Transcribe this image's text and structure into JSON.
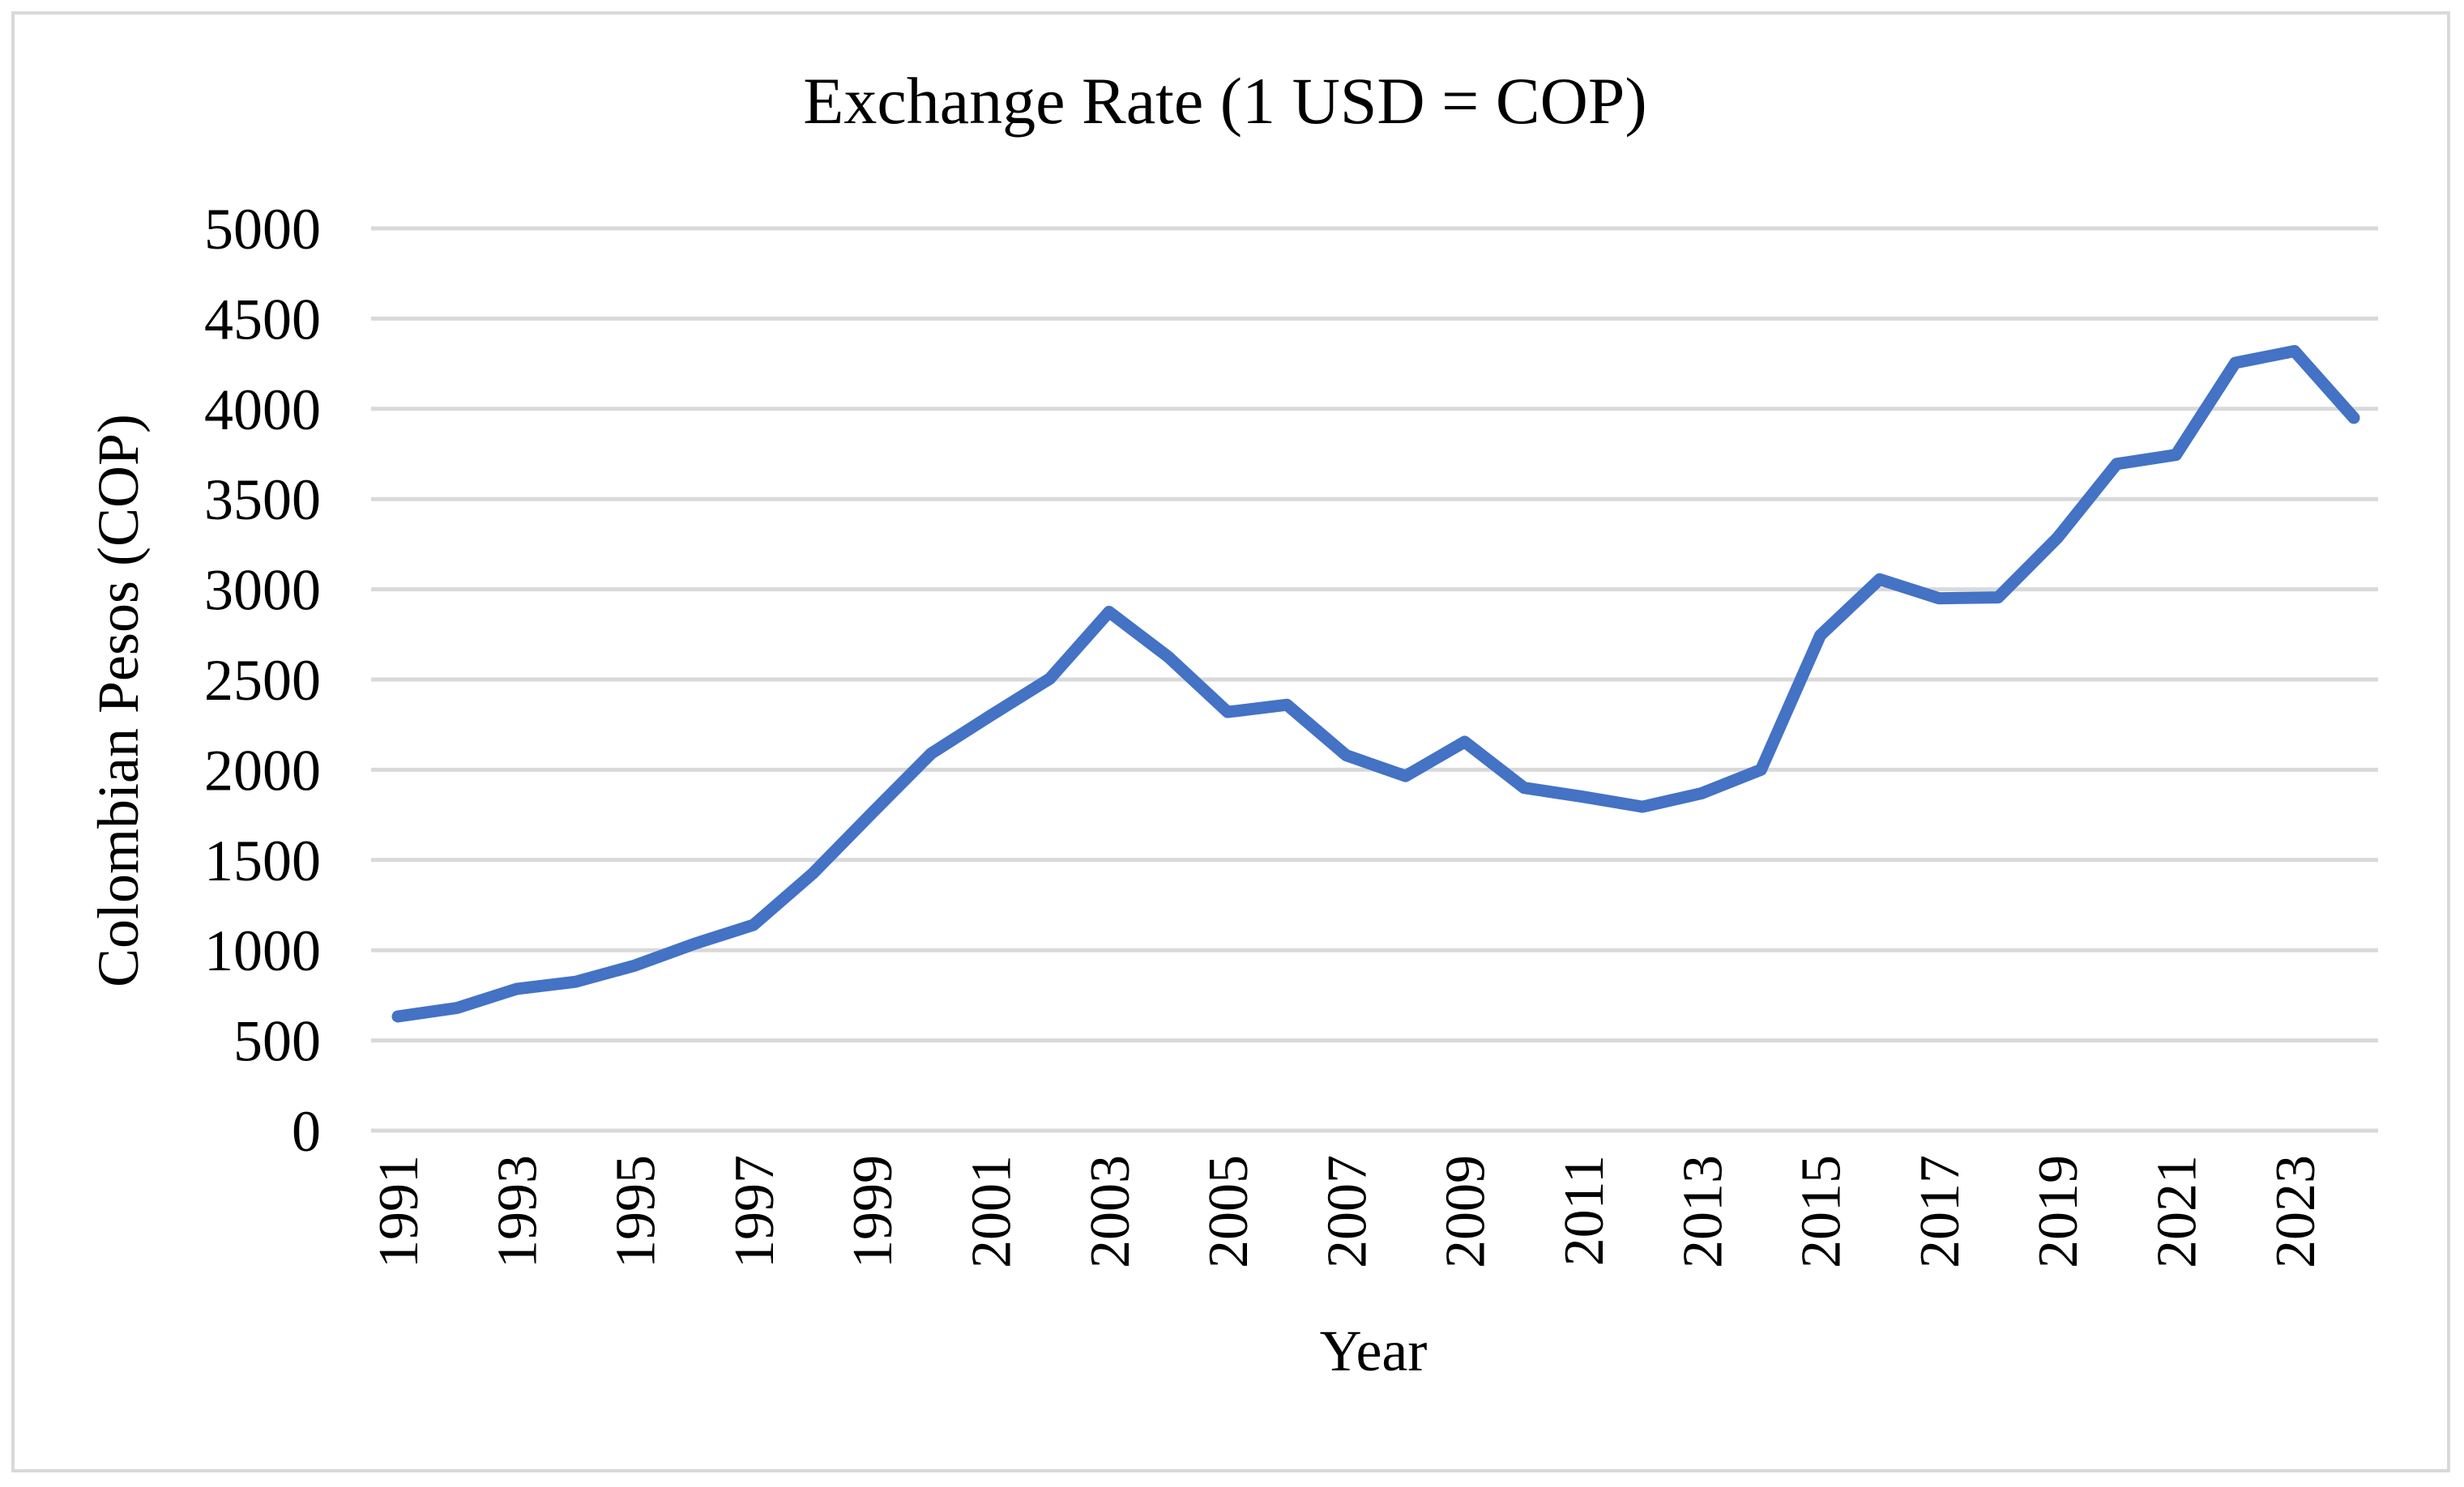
{
  "chart_data": {
    "type": "line",
    "title": "Exchange Rate (1 USD = COP)",
    "xlabel": "Year",
    "ylabel": "Colombian Pesos (COP)",
    "ylim": [
      0,
      5000
    ],
    "y_ticks": [
      "0",
      "500",
      "1000",
      "1500",
      "2000",
      "2500",
      "3000",
      "3500",
      "4000",
      "4500",
      "5000"
    ],
    "x_tick_labels": [
      "1991",
      "1993",
      "1995",
      "1997",
      "1999",
      "2001",
      "2003",
      "2005",
      "2007",
      "2009",
      "2011",
      "2013",
      "2015",
      "2017",
      "2019",
      "2021",
      "2023"
    ],
    "grid": true,
    "legend": "none",
    "line_color": "#4472c4",
    "x": [
      1991,
      1992,
      1993,
      1994,
      1995,
      1996,
      1997,
      1998,
      1999,
      2000,
      2001,
      2002,
      2003,
      2004,
      2005,
      2006,
      2007,
      2008,
      2009,
      2010,
      2011,
      2012,
      2013,
      2014,
      2015,
      2016,
      2017,
      2018,
      2019,
      2020,
      2021,
      2022,
      2023,
      2024
    ],
    "series": [
      {
        "name": "Exchange Rate (1 USD = COP)",
        "values": [
          633,
          680,
          785,
          825,
          915,
          1035,
          1140,
          1425,
          1760,
          2090,
          2300,
          2505,
          2875,
          2625,
          2320,
          2360,
          2080,
          1965,
          2155,
          1900,
          1850,
          1795,
          1870,
          2000,
          2745,
          3055,
          2950,
          2955,
          3285,
          3695,
          3745,
          4255,
          4320,
          3950
        ]
      }
    ]
  }
}
